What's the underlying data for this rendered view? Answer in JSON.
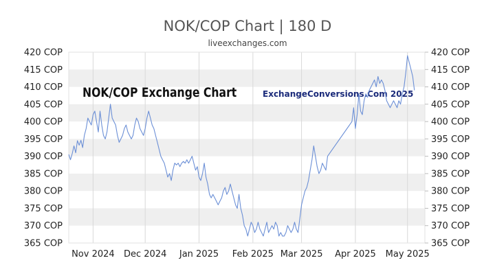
{
  "page": {
    "title": "NOK/COP Chart | 180 D",
    "source": "liveexchanges.com",
    "watermark_left": "NOK/COP Exchange Chart",
    "watermark_right": "ExchangeConversions.Com 2025"
  },
  "chart_data": {
    "type": "line",
    "title": "NOK/COP Chart | 180 D",
    "subtitle": "liveexchanges.com",
    "xlabel": "",
    "ylabel": "",
    "ylim": [
      365,
      420
    ],
    "y_ticks": [
      420,
      415,
      410,
      405,
      400,
      395,
      390,
      385,
      380,
      375,
      370,
      365
    ],
    "y_tick_suffix": " COP",
    "x_ticks": [
      {
        "label": "Nov 2024",
        "day": 14
      },
      {
        "label": "Dec 2024",
        "day": 44
      },
      {
        "label": "Jan 2025",
        "day": 75
      },
      {
        "label": "Feb 2025",
        "day": 106
      },
      {
        "label": "Mar 2025",
        "day": 134
      },
      {
        "label": "Apr 2025",
        "day": 165
      },
      {
        "label": "May 2025",
        "day": 195
      }
    ],
    "x_range_days": [
      0,
      205
    ],
    "grid": "horizontal bands",
    "line_color": "#6b8fd6",
    "band_color": "#efefef",
    "series": [
      {
        "name": "",
        "points": [
          [
            0,
            390.5
          ],
          [
            1,
            389
          ],
          [
            2,
            390.8
          ],
          [
            3,
            393
          ],
          [
            4,
            391
          ],
          [
            5,
            394.5
          ],
          [
            6,
            393.2
          ],
          [
            7,
            394.6
          ],
          [
            8,
            392.5
          ],
          [
            9,
            396
          ],
          [
            10,
            398
          ],
          [
            11,
            401
          ],
          [
            12,
            400
          ],
          [
            13,
            399
          ],
          [
            14,
            402
          ],
          [
            15,
            403
          ],
          [
            16,
            400
          ],
          [
            17,
            397
          ],
          [
            18,
            403
          ],
          [
            19,
            399
          ],
          [
            20,
            396
          ],
          [
            21,
            395
          ],
          [
            22,
            397
          ],
          [
            23,
            401
          ],
          [
            24,
            405
          ],
          [
            25,
            401
          ],
          [
            26,
            400
          ],
          [
            27,
            399
          ],
          [
            28,
            396
          ],
          [
            29,
            394
          ],
          [
            30,
            395
          ],
          [
            31,
            396
          ],
          [
            32,
            398
          ],
          [
            33,
            399
          ],
          [
            34,
            397
          ],
          [
            35,
            396
          ],
          [
            36,
            395
          ],
          [
            37,
            396
          ],
          [
            38,
            399
          ],
          [
            39,
            401
          ],
          [
            40,
            400
          ],
          [
            41,
            398
          ],
          [
            42,
            397
          ],
          [
            43,
            396
          ],
          [
            44,
            398
          ],
          [
            45,
            401
          ],
          [
            46,
            403
          ],
          [
            47,
            401
          ],
          [
            48,
            399
          ],
          [
            49,
            398
          ],
          [
            50,
            396
          ],
          [
            51,
            394
          ],
          [
            52,
            392
          ],
          [
            53,
            390
          ],
          [
            54,
            389
          ],
          [
            55,
            388
          ],
          [
            56,
            386
          ],
          [
            57,
            384
          ],
          [
            58,
            385
          ],
          [
            59,
            383
          ],
          [
            60,
            386
          ],
          [
            61,
            388
          ],
          [
            62,
            387.5
          ],
          [
            63,
            388
          ],
          [
            64,
            387
          ],
          [
            65,
            388
          ],
          [
            66,
            388.5
          ],
          [
            67,
            388
          ],
          [
            68,
            389
          ],
          [
            69,
            388
          ],
          [
            70,
            389
          ],
          [
            71,
            390
          ],
          [
            72,
            388
          ],
          [
            73,
            386
          ],
          [
            74,
            387
          ],
          [
            75,
            384
          ],
          [
            76,
            383
          ],
          [
            77,
            385
          ],
          [
            78,
            388
          ],
          [
            79,
            384
          ],
          [
            80,
            382
          ],
          [
            81,
            379
          ],
          [
            82,
            378
          ],
          [
            83,
            379
          ],
          [
            84,
            378
          ],
          [
            85,
            377
          ],
          [
            86,
            376
          ],
          [
            87,
            377
          ],
          [
            88,
            378
          ],
          [
            89,
            380
          ],
          [
            90,
            381
          ],
          [
            91,
            379
          ],
          [
            92,
            380
          ],
          [
            93,
            382
          ],
          [
            94,
            380
          ],
          [
            95,
            378
          ],
          [
            96,
            376
          ],
          [
            97,
            375
          ],
          [
            98,
            379
          ],
          [
            99,
            375
          ],
          [
            100,
            373
          ],
          [
            101,
            370
          ],
          [
            102,
            369
          ],
          [
            103,
            367
          ],
          [
            104,
            369
          ],
          [
            105,
            371
          ],
          [
            106,
            370
          ],
          [
            107,
            368
          ],
          [
            108,
            369
          ],
          [
            109,
            371
          ],
          [
            110,
            369
          ],
          [
            111,
            368
          ],
          [
            112,
            367
          ],
          [
            113,
            369
          ],
          [
            114,
            371
          ],
          [
            115,
            368
          ],
          [
            116,
            369
          ],
          [
            117,
            370
          ],
          [
            118,
            369
          ],
          [
            119,
            371
          ],
          [
            120,
            370
          ],
          [
            121,
            367
          ],
          [
            122,
            368
          ],
          [
            123,
            367
          ],
          [
            124,
            367
          ],
          [
            125,
            368
          ],
          [
            126,
            370
          ],
          [
            127,
            369
          ],
          [
            128,
            368
          ],
          [
            129,
            369
          ],
          [
            130,
            371
          ],
          [
            131,
            369
          ],
          [
            132,
            368
          ],
          [
            133,
            372
          ],
          [
            134,
            376
          ],
          [
            135,
            378
          ],
          [
            136,
            380
          ],
          [
            137,
            381
          ],
          [
            138,
            383
          ],
          [
            139,
            386
          ],
          [
            140,
            389
          ],
          [
            141,
            393
          ],
          [
            142,
            390
          ],
          [
            143,
            387
          ],
          [
            144,
            385
          ],
          [
            145,
            386
          ],
          [
            146,
            388
          ],
          [
            147,
            387
          ],
          [
            148,
            386
          ],
          [
            149,
            390
          ],
          [
            163,
            400
          ],
          [
            164,
            404
          ],
          [
            165,
            398
          ],
          [
            166,
            402
          ],
          [
            167,
            408
          ],
          [
            168,
            403
          ],
          [
            169,
            402
          ],
          [
            170,
            406
          ],
          [
            171,
            408
          ],
          [
            172,
            407
          ],
          [
            173,
            409
          ],
          [
            174,
            410
          ],
          [
            175,
            411
          ],
          [
            176,
            412
          ],
          [
            177,
            410
          ],
          [
            178,
            413
          ],
          [
            179,
            411
          ],
          [
            180,
            412
          ],
          [
            181,
            411
          ],
          [
            182,
            409
          ],
          [
            183,
            406
          ],
          [
            184,
            405
          ],
          [
            185,
            404
          ],
          [
            186,
            405
          ],
          [
            187,
            406
          ],
          [
            188,
            405
          ],
          [
            189,
            404
          ],
          [
            190,
            406
          ],
          [
            191,
            405
          ],
          [
            192,
            408
          ],
          [
            193,
            410
          ],
          [
            194,
            414
          ],
          [
            195,
            419
          ],
          [
            196,
            417
          ],
          [
            197,
            415
          ],
          [
            198,
            413
          ],
          [
            199,
            409
          ]
        ]
      }
    ]
  }
}
